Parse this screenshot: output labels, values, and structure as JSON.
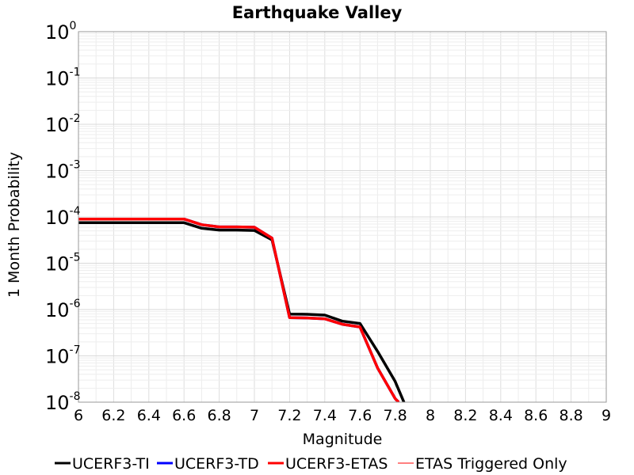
{
  "chart_data": {
    "type": "line",
    "title": "Earthquake Valley",
    "xlabel": "Magnitude",
    "ylabel": "1 Month Probability",
    "xlim": [
      6,
      9
    ],
    "ylim": [
      1e-08,
      1
    ],
    "yscale": "log",
    "grid": true,
    "legend_position": "bottom",
    "x_ticks": [
      "6",
      "6.2",
      "6.4",
      "6.6",
      "6.8",
      "7",
      "7.2",
      "7.4",
      "7.6",
      "7.8",
      "8",
      "8.2",
      "8.4",
      "8.6",
      "8.8",
      "9"
    ],
    "y_ticks": [
      {
        "base": "10",
        "exp": "0"
      },
      {
        "base": "10",
        "exp": "-1"
      },
      {
        "base": "10",
        "exp": "-2"
      },
      {
        "base": "10",
        "exp": "-3"
      },
      {
        "base": "10",
        "exp": "-4"
      },
      {
        "base": "10",
        "exp": "-5"
      },
      {
        "base": "10",
        "exp": "-6"
      },
      {
        "base": "10",
        "exp": "-7"
      },
      {
        "base": "10",
        "exp": "-8"
      }
    ],
    "series": [
      {
        "name": "UCERF3-TI",
        "color": "#000000",
        "x": [
          6.0,
          6.1,
          6.2,
          6.3,
          6.4,
          6.5,
          6.6,
          6.7,
          6.8,
          6.9,
          7.0,
          7.1,
          7.2,
          7.3,
          7.4,
          7.5,
          7.6,
          7.7,
          7.8,
          7.85
        ],
        "y": [
          7.5e-05,
          7.5e-05,
          7.5e-05,
          7.5e-05,
          7.5e-05,
          7.5e-05,
          7.5e-05,
          5.7e-05,
          5.2e-05,
          5.2e-05,
          5.1e-05,
          3.2e-05,
          8e-07,
          7.9e-07,
          7.6e-07,
          5.6e-07,
          5e-07,
          1.25e-07,
          2.8e-08,
          1e-08
        ]
      },
      {
        "name": "UCERF3-TD",
        "color": "#0000ff",
        "x": [
          6.0,
          6.1,
          6.2,
          6.3,
          6.4,
          6.5,
          6.6,
          6.7,
          6.8,
          6.9,
          7.0,
          7.1,
          7.2,
          7.3,
          7.4,
          7.5,
          7.6,
          7.7,
          7.8,
          7.82
        ],
        "y": [
          9e-05,
          9e-05,
          9e-05,
          9e-05,
          9e-05,
          9e-05,
          9e-05,
          6.8e-05,
          6.1e-05,
          6.1e-05,
          6e-05,
          3.5e-05,
          6.7e-07,
          6.6e-07,
          6.3e-07,
          4.8e-07,
          4.2e-07,
          5.5e-08,
          1.2e-08,
          1e-08
        ]
      },
      {
        "name": "UCERF3-ETAS",
        "color": "#ff0000",
        "x": [
          6.0,
          6.1,
          6.2,
          6.3,
          6.4,
          6.5,
          6.6,
          6.7,
          6.8,
          6.9,
          7.0,
          7.1,
          7.2,
          7.3,
          7.4,
          7.5,
          7.6,
          7.7,
          7.8,
          7.82
        ],
        "y": [
          9e-05,
          9e-05,
          9e-05,
          9e-05,
          9e-05,
          9e-05,
          9e-05,
          6.8e-05,
          6.1e-05,
          6.1e-05,
          6e-05,
          3.5e-05,
          6.7e-07,
          6.6e-07,
          6.3e-07,
          4.8e-07,
          4.2e-07,
          5.5e-08,
          1.2e-08,
          1e-08
        ]
      },
      {
        "name": "ETAS Triggered Only",
        "color": "#ff0000",
        "x": [],
        "y": []
      }
    ]
  }
}
